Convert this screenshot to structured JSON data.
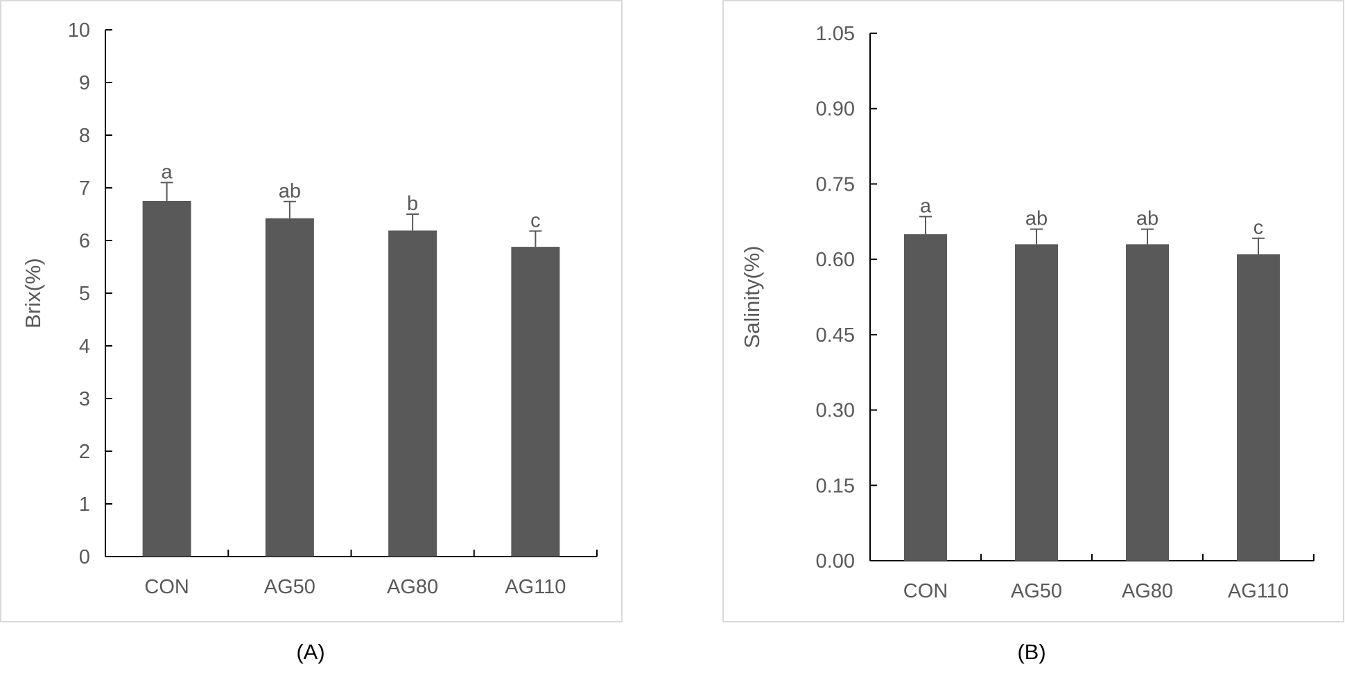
{
  "colors": {
    "bar": "#595959",
    "axis": "#000000",
    "text": "#595959",
    "panel_border": "#d9d9d9",
    "caption": "#000000"
  },
  "chart_data": [
    {
      "type": "bar",
      "panel_label": "(A)",
      "title": "",
      "xlabel": "",
      "ylabel": "Brix(%)",
      "ylim": [
        0,
        10
      ],
      "yticks": [
        0,
        1,
        2,
        3,
        4,
        5,
        6,
        7,
        8,
        9,
        10
      ],
      "ytick_labels": [
        "0",
        "1",
        "2",
        "3",
        "4",
        "5",
        "6",
        "7",
        "8",
        "9",
        "10"
      ],
      "grid": false,
      "categories": [
        "CON",
        "AG50",
        "AG80",
        "AG110"
      ],
      "values": [
        6.75,
        6.42,
        6.19,
        5.88
      ],
      "errors": [
        0.35,
        0.32,
        0.31,
        0.3
      ],
      "letters": [
        "a",
        "ab",
        "b",
        "c"
      ]
    },
    {
      "type": "bar",
      "panel_label": "(B)",
      "title": "",
      "xlabel": "",
      "ylabel": "Salinity(%)",
      "ylim": [
        0,
        1.05
      ],
      "yticks": [
        0,
        0.15,
        0.3,
        0.45,
        0.6,
        0.75,
        0.9,
        1.05
      ],
      "ytick_labels": [
        "0.00",
        "0.15",
        "0.30",
        "0.45",
        "0.60",
        "0.75",
        "0.90",
        "1.05"
      ],
      "grid": false,
      "categories": [
        "CON",
        "AG50",
        "AG80",
        "AG110"
      ],
      "values": [
        0.65,
        0.63,
        0.63,
        0.61
      ],
      "errors": [
        0.035,
        0.03,
        0.03,
        0.032
      ],
      "letters": [
        "a",
        "ab",
        "ab",
        "c"
      ]
    }
  ]
}
